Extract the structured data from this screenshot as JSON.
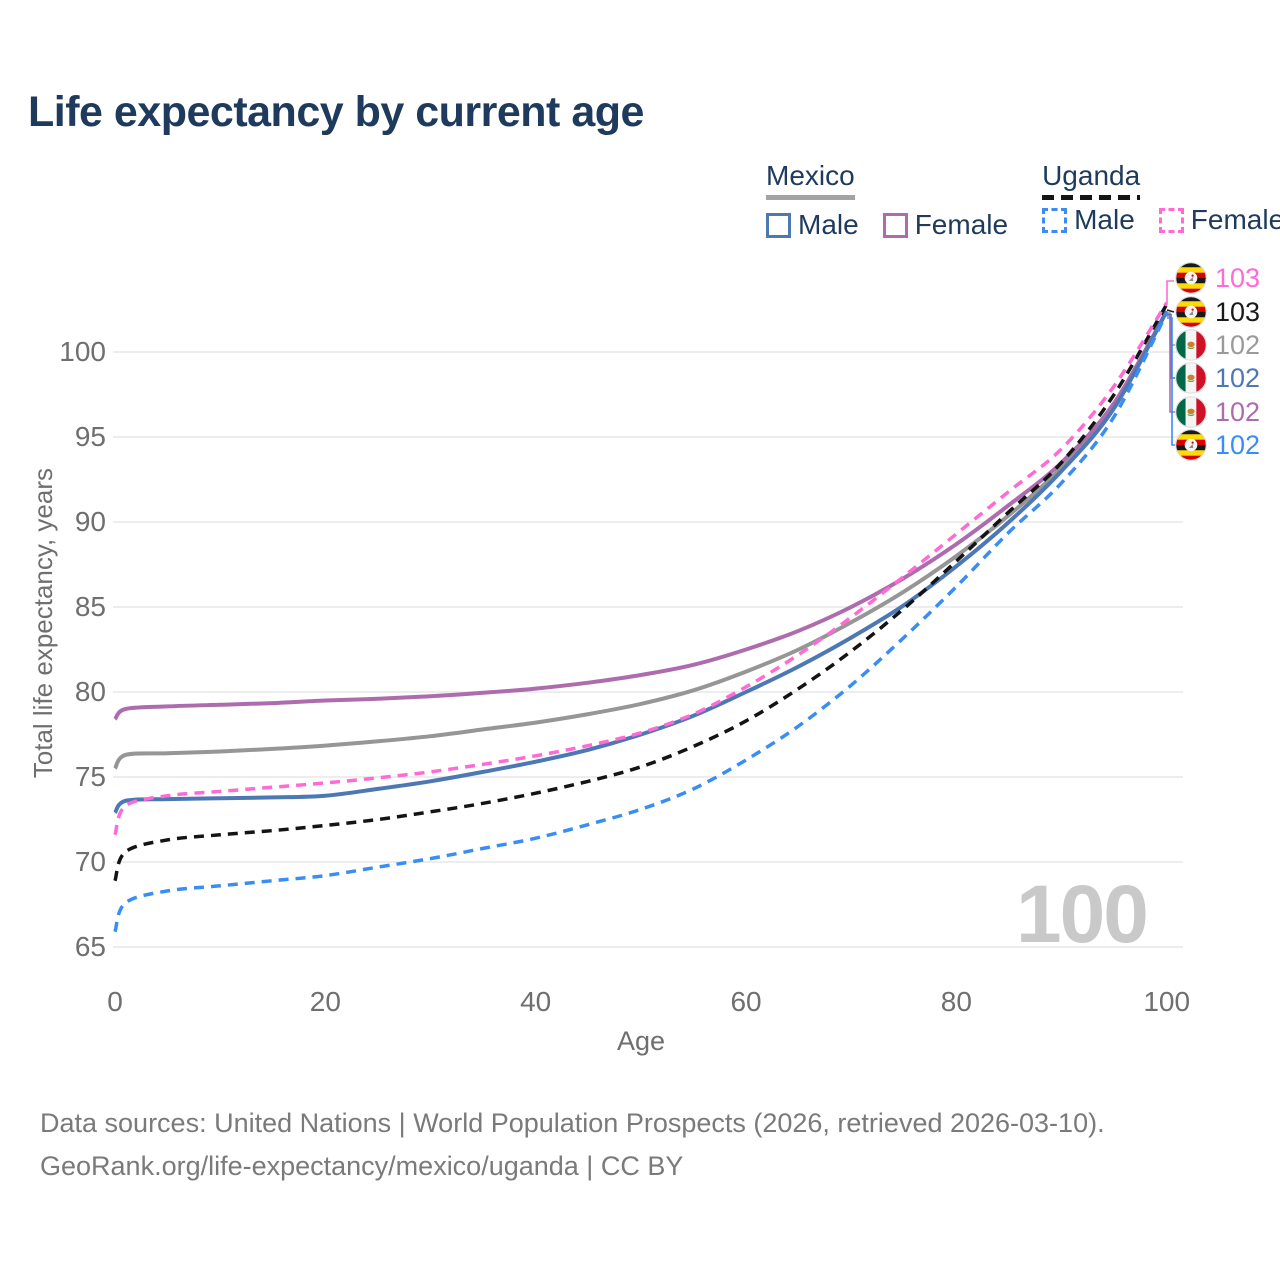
{
  "title": "Life expectancy by current age",
  "legend": {
    "groups": [
      {
        "label": "Mexico",
        "line_style": "solid",
        "items": [
          {
            "label": "Male",
            "color": "#4d78b4"
          },
          {
            "label": "Female",
            "color": "#ad6cae"
          }
        ]
      },
      {
        "label": "Uganda",
        "line_style": "dashed",
        "items": [
          {
            "label": "Male",
            "color": "#3a8df4"
          },
          {
            "label": "Female",
            "color": "#ff6ad5"
          }
        ]
      }
    ]
  },
  "chart_data": {
    "type": "line",
    "title": "Life expectancy by current age",
    "xlabel": "Age",
    "ylabel": "Total life expectancy, years",
    "xticks": [
      0,
      20,
      40,
      60,
      80,
      100
    ],
    "yticks": [
      65,
      70,
      75,
      80,
      85,
      90,
      95,
      100
    ],
    "xlim": [
      0,
      100
    ],
    "ylim": [
      63.5,
      104.5
    ],
    "grid": "horizontal",
    "x": [
      0,
      1,
      5,
      10,
      15,
      20,
      25,
      30,
      35,
      40,
      45,
      50,
      55,
      60,
      65,
      70,
      75,
      80,
      85,
      90,
      95,
      100
    ],
    "series": [
      {
        "name": "Mexico Both sexes",
        "country": "Mexico",
        "sex": "Both",
        "style": "solid",
        "color": "#969696",
        "values": [
          75.5,
          76.3,
          76.4,
          76.5,
          76.65,
          76.85,
          77.1,
          77.4,
          77.8,
          78.2,
          78.7,
          79.3,
          80.1,
          81.2,
          82.5,
          84.1,
          85.9,
          88.0,
          90.4,
          93.2,
          96.8,
          102.4
        ]
      },
      {
        "name": "Mexico Female",
        "country": "Mexico",
        "sex": "Female",
        "style": "solid",
        "color": "#ad6cae",
        "values": [
          78.4,
          79.0,
          79.15,
          79.25,
          79.35,
          79.5,
          79.6,
          79.75,
          79.95,
          80.2,
          80.55,
          81.0,
          81.6,
          82.5,
          83.6,
          85.0,
          86.7,
          88.7,
          91.0,
          93.5,
          97.0,
          102.4
        ]
      },
      {
        "name": "Mexico Male",
        "country": "Mexico",
        "sex": "Male",
        "style": "solid",
        "color": "#4d78b4",
        "values": [
          72.9,
          73.6,
          73.7,
          73.75,
          73.8,
          73.9,
          74.3,
          74.75,
          75.3,
          75.9,
          76.6,
          77.5,
          78.6,
          80.0,
          81.5,
          83.2,
          85.1,
          87.4,
          90.0,
          93.0,
          96.7,
          102.4
        ]
      },
      {
        "name": "Uganda Both sexes",
        "country": "Uganda",
        "sex": "Both",
        "style": "dashed",
        "color": "#141414",
        "values": [
          68.9,
          70.6,
          71.3,
          71.6,
          71.85,
          72.15,
          72.5,
          72.95,
          73.45,
          74.05,
          74.75,
          75.6,
          76.8,
          78.3,
          80.2,
          82.4,
          84.9,
          87.7,
          90.6,
          93.5,
          97.5,
          102.8
        ]
      },
      {
        "name": "Uganda Male",
        "country": "Uganda",
        "sex": "Male",
        "style": "dashed",
        "color": "#3a8df4",
        "values": [
          65.9,
          67.6,
          68.3,
          68.6,
          68.9,
          69.2,
          69.7,
          70.2,
          70.8,
          71.4,
          72.2,
          73.1,
          74.3,
          76.0,
          78.0,
          80.4,
          83.2,
          86.2,
          89.4,
          92.3,
          96.2,
          102.3
        ]
      },
      {
        "name": "Uganda Female",
        "country": "Uganda",
        "sex": "Female",
        "style": "dashed",
        "color": "#ff6ad5",
        "values": [
          71.6,
          73.3,
          73.9,
          74.15,
          74.4,
          74.65,
          74.95,
          75.3,
          75.75,
          76.25,
          76.85,
          77.6,
          78.7,
          80.3,
          82.2,
          84.4,
          86.8,
          89.3,
          91.8,
          94.3,
          98.0,
          102.9
        ]
      }
    ],
    "end_labels": [
      {
        "flag": "uganda",
        "value": "103",
        "color": "#ff6ad5",
        "series": "Uganda Female"
      },
      {
        "flag": "uganda",
        "value": "103",
        "color": "#1a1a1a",
        "series": "Uganda Both sexes"
      },
      {
        "flag": "mexico",
        "value": "102",
        "color": "#9a9a9a",
        "series": "Mexico Both sexes"
      },
      {
        "flag": "mexico",
        "value": "102",
        "color": "#4d78b4",
        "series": "Mexico Male"
      },
      {
        "flag": "mexico",
        "value": "102",
        "color": "#ad6cae",
        "series": "Mexico Female"
      },
      {
        "flag": "uganda",
        "value": "102",
        "color": "#3a8df4",
        "series": "Uganda Male"
      }
    ]
  },
  "watermark_age": "100",
  "footer": {
    "line1": "Data sources: United Nations | World Population Prospects (2026, retrieved 2026-03-10).",
    "line2": "GeoRank.org/life-expectancy/mexico/uganda | CC BY"
  },
  "colors": {
    "title": "#1e3a5c",
    "grid": "#e7e7e7",
    "tick_text": "#6f6f6f",
    "watermark": "#c9c9c9",
    "footer_text": "#7a7a7a",
    "mexico_underline": "#a3a3a3",
    "uganda_underline": "#141414"
  }
}
